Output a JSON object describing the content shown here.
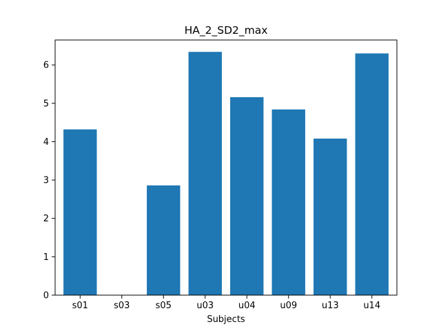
{
  "chart_data": {
    "type": "bar",
    "title": "HA_2_SD2_max",
    "xlabel": "Subjects",
    "ylabel": "",
    "categories": [
      "s01",
      "s03",
      "s05",
      "u03",
      "u04",
      "u09",
      "u13",
      "u14"
    ],
    "values": [
      4.32,
      0,
      2.86,
      6.34,
      5.16,
      4.84,
      4.08,
      6.3
    ],
    "ylim": [
      0,
      6.65
    ],
    "yticks": [
      0,
      1,
      2,
      3,
      4,
      5,
      6
    ],
    "grid": false,
    "bar_color": "#1f77b4"
  }
}
